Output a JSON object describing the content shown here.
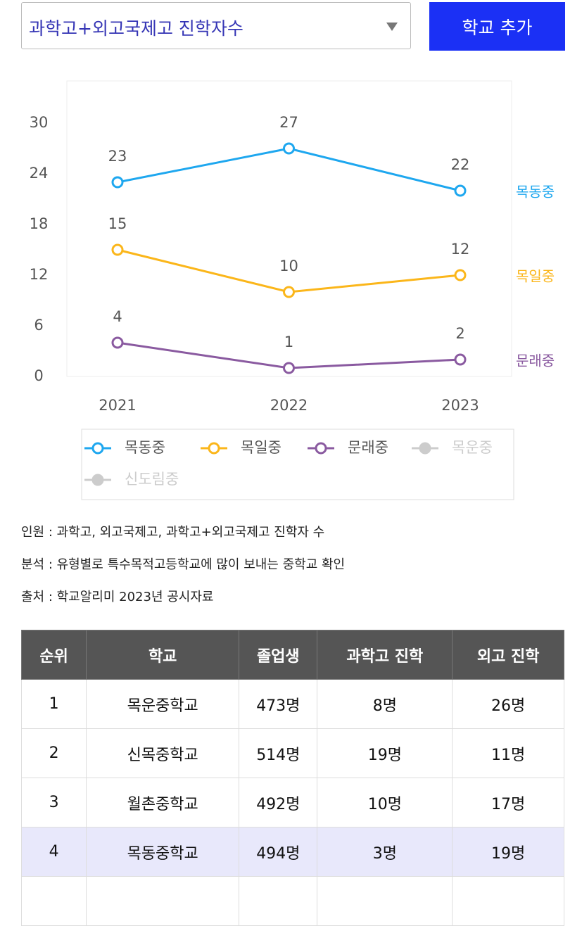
{
  "dropdown": {
    "text": "과학고+외고국제고 진학자수"
  },
  "button": {
    "text": "학교 추가"
  },
  "chart_data": {
    "type": "line",
    "categories": [
      "2021",
      "2022",
      "2023"
    ],
    "series": [
      {
        "name": "목동중",
        "color": "#1ea7ef",
        "values": [
          23,
          27,
          22
        ],
        "visible": true
      },
      {
        "name": "목일중",
        "color": "#fbb61a",
        "values": [
          15,
          10,
          12
        ],
        "visible": true
      },
      {
        "name": "문래중",
        "color": "#8a5aa0",
        "values": [
          4,
          1,
          2
        ],
        "visible": true
      },
      {
        "name": "목운중",
        "color": "#cccccc",
        "values": [
          null,
          null,
          null
        ],
        "visible": false
      },
      {
        "name": "신도림중",
        "color": "#cccccc",
        "values": [
          null,
          null,
          null
        ],
        "visible": false
      }
    ],
    "ylim": [
      0,
      35
    ],
    "yticks": [
      0,
      6,
      12,
      18,
      24,
      30
    ],
    "grid": false,
    "legend": "bottom"
  },
  "notes": [
    "인원 : 과학고, 외고국제고, 과학고+외고국제고 진학자 수",
    "분석 : 유형별로 특수목적고등학교에 많이 보내는 중학교 확인",
    "출처 : 학교알리미 2023년 공시자료"
  ],
  "table": {
    "header": [
      "순위",
      "학교",
      "졸업생",
      "과학고 진학",
      "외고 진학"
    ],
    "rows": [
      [
        "1",
        "목운중학교",
        "473명",
        "8명",
        "26명"
      ],
      [
        "2",
        "신목중학교",
        "514명",
        "19명",
        "11명"
      ],
      [
        "3",
        "월촌중학교",
        "492명",
        "10명",
        "17명"
      ],
      [
        "4",
        "목동중학교",
        "494명",
        "3명",
        "19명"
      ]
    ],
    "highlighted_row": 3
  }
}
